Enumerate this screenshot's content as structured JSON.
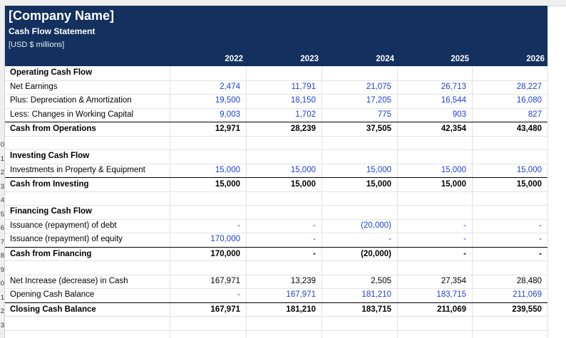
{
  "header": {
    "company": "[Company Name]",
    "title": "Cash Flow Statement",
    "units": "[USD $ millions]",
    "years": [
      "2022",
      "2023",
      "2024",
      "2025",
      "2026"
    ]
  },
  "sections": {
    "operating": {
      "heading": "Operating Cash Flow",
      "net_earnings": {
        "label": "Net Earnings",
        "values": [
          "2,474",
          "11,791",
          "21,075",
          "26,713",
          "28,227"
        ]
      },
      "depreciation": {
        "label": "Plus: Depreciation & Amortization",
        "values": [
          "19,500",
          "18,150",
          "17,205",
          "16,544",
          "16,080"
        ]
      },
      "working_capital": {
        "label": "Less: Changes in Working Capital",
        "values": [
          "9,003",
          "1,702",
          "775",
          "903",
          "827"
        ]
      },
      "total": {
        "label": "Cash from Operations",
        "values": [
          "12,971",
          "28,239",
          "37,505",
          "42,354",
          "43,480"
        ]
      }
    },
    "investing": {
      "heading": "Investing Cash Flow",
      "ppe": {
        "label": "Investments in Property & Equipment",
        "values": [
          "15,000",
          "15,000",
          "15,000",
          "15,000",
          "15,000"
        ]
      },
      "total": {
        "label": "Cash from Investing",
        "values": [
          "15,000",
          "15,000",
          "15,000",
          "15,000",
          "15,000"
        ]
      }
    },
    "financing": {
      "heading": "Financing Cash Flow",
      "debt": {
        "label": "Issuance (repayment) of debt",
        "values": [
          "-",
          "-",
          "(20,000)",
          "-",
          "-"
        ]
      },
      "equity": {
        "label": "Issuance (repayment) of equity",
        "values": [
          "170,000",
          "-",
          "-",
          "-",
          "-"
        ]
      },
      "total": {
        "label": "Cash from Financing",
        "values": [
          "170,000",
          "-",
          "(20,000)",
          "-",
          "-"
        ]
      }
    },
    "summary": {
      "net_increase": {
        "label": "Net Increase (decrease) in Cash",
        "values": [
          "167,971",
          "13,239",
          "2,505",
          "27,354",
          "28,480"
        ]
      },
      "opening": {
        "label": "Opening Cash Balance",
        "values": [
          "-",
          "167,971",
          "181,210",
          "183,715",
          "211,069"
        ]
      },
      "closing": {
        "label": "Closing Cash Balance",
        "values": [
          "167,971",
          "181,210",
          "183,715",
          "211,069",
          "239,550"
        ]
      }
    }
  },
  "row_numbers": [
    "0",
    "1",
    "2",
    "3",
    "4",
    "5",
    "6",
    "7",
    "8",
    "9",
    "0",
    "1",
    "2",
    "3"
  ],
  "colors": {
    "header_bg": "#13305e",
    "input_blue": "#1a3fd6"
  }
}
